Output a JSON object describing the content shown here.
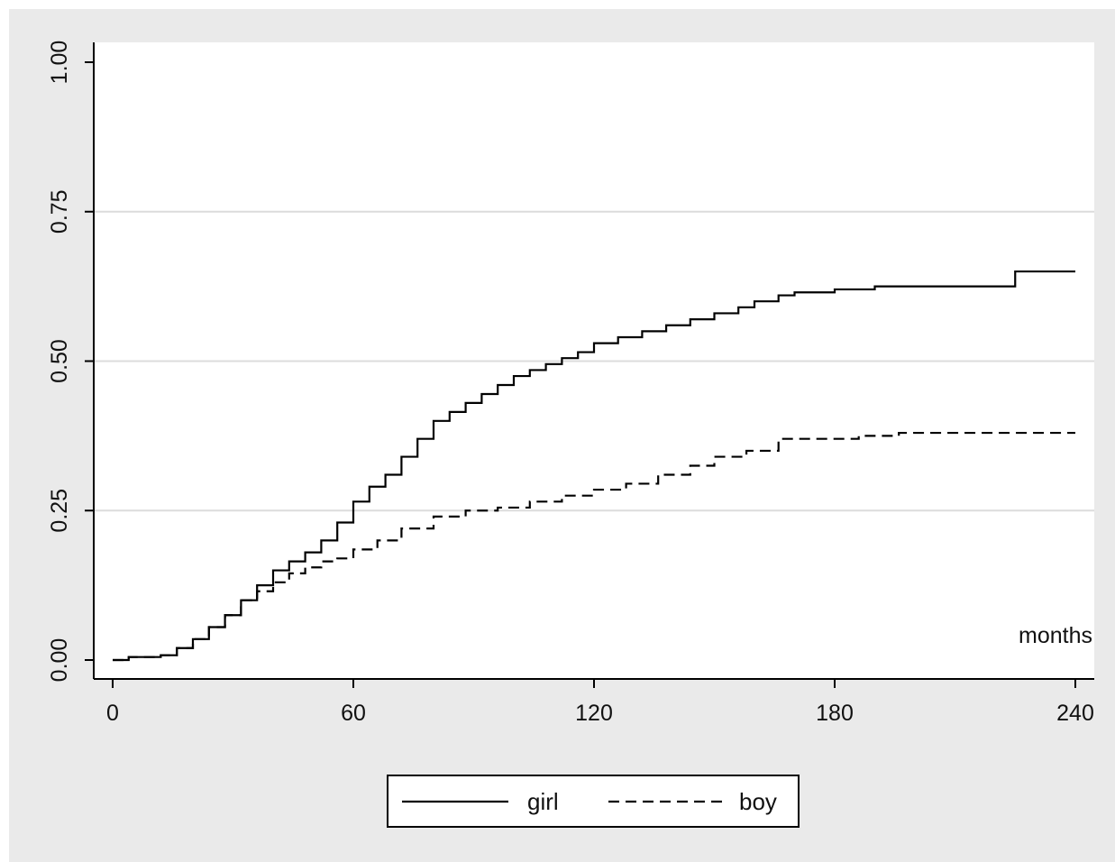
{
  "chart_data": {
    "type": "line",
    "title": "",
    "xlabel": "months",
    "ylabel": "",
    "xlim": [
      0,
      240
    ],
    "ylim": [
      0,
      1
    ],
    "xticks": [
      0,
      60,
      120,
      180,
      240
    ],
    "yticks": [
      0,
      0.25,
      0.5,
      0.75,
      1
    ],
    "ytick_labels": [
      "0.00",
      "0.25",
      "0.50",
      "0.75",
      "1.00"
    ],
    "grid": "horizontal",
    "legend_position": "bottom",
    "step": true,
    "series": [
      {
        "name": "girl",
        "style": "solid",
        "color": "#000000",
        "x": [
          0,
          4,
          12,
          16,
          20,
          24,
          28,
          32,
          36,
          40,
          44,
          48,
          52,
          56,
          60,
          64,
          68,
          72,
          76,
          80,
          84,
          88,
          92,
          96,
          100,
          104,
          108,
          112,
          116,
          120,
          126,
          132,
          138,
          144,
          150,
          156,
          160,
          166,
          170,
          180,
          190,
          200,
          210,
          224,
          225,
          240
        ],
        "y": [
          0,
          0.005,
          0.008,
          0.02,
          0.035,
          0.055,
          0.075,
          0.1,
          0.125,
          0.15,
          0.165,
          0.18,
          0.2,
          0.23,
          0.265,
          0.29,
          0.31,
          0.34,
          0.37,
          0.4,
          0.415,
          0.43,
          0.445,
          0.46,
          0.475,
          0.485,
          0.495,
          0.505,
          0.515,
          0.53,
          0.54,
          0.55,
          0.56,
          0.57,
          0.58,
          0.59,
          0.6,
          0.61,
          0.615,
          0.62,
          0.625,
          0.625,
          0.625,
          0.625,
          0.65,
          0.65
        ]
      },
      {
        "name": "boy",
        "style": "dashed",
        "color": "#000000",
        "x": [
          0,
          4,
          12,
          16,
          20,
          24,
          28,
          32,
          36,
          40,
          44,
          48,
          52,
          56,
          60,
          66,
          72,
          80,
          88,
          96,
          104,
          112,
          120,
          128,
          136,
          144,
          150,
          158,
          166,
          176,
          186,
          196,
          210,
          240
        ],
        "y": [
          0,
          0.005,
          0.008,
          0.02,
          0.035,
          0.055,
          0.075,
          0.1,
          0.115,
          0.13,
          0.145,
          0.155,
          0.165,
          0.17,
          0.185,
          0.2,
          0.22,
          0.24,
          0.25,
          0.255,
          0.265,
          0.275,
          0.285,
          0.295,
          0.31,
          0.325,
          0.34,
          0.35,
          0.37,
          0.37,
          0.375,
          0.38,
          0.38,
          0.38
        ]
      }
    ]
  }
}
